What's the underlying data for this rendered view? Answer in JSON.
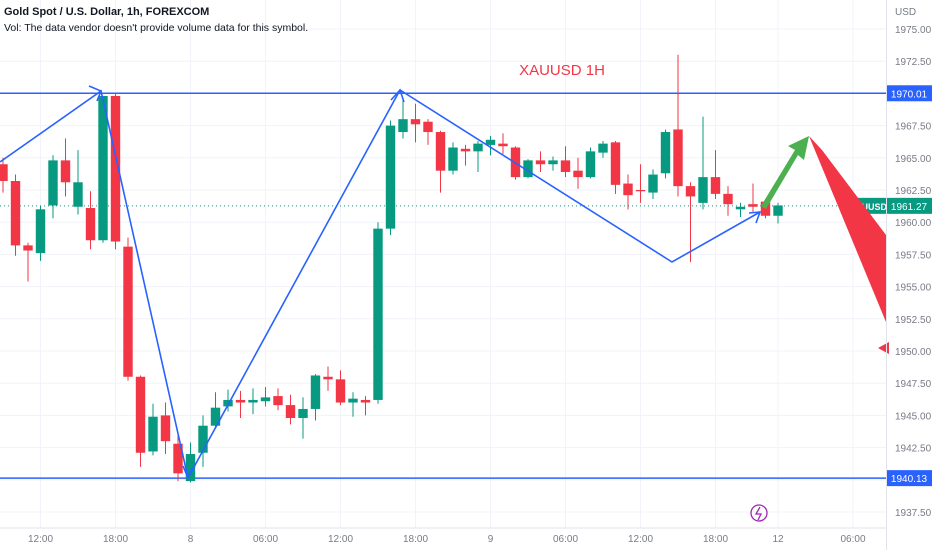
{
  "header": {
    "title": "Gold Spot / U.S. Dollar, 1h, FOREXCOM",
    "volume_note": "Vol: The data vendor doesn't provide volume data for this symbol."
  },
  "chart_data": {
    "type": "candlestick",
    "title": "XAUUSD 1H",
    "currency_label": "USD",
    "ylim": [
      1936.8,
      1976.6
    ],
    "y_ticks": [
      "1975.00",
      "1972.50",
      "1970.00",
      "1967.50",
      "1965.00",
      "1962.50",
      "1960.00",
      "1957.50",
      "1955.00",
      "1952.50",
      "1950.00",
      "1947.50",
      "1945.00",
      "1942.50",
      "1940.00",
      "1937.50"
    ],
    "x_ticks": [
      {
        "label": "12:00",
        "bar": 3
      },
      {
        "label": "18:00",
        "bar": 9
      },
      {
        "label": "8",
        "bar": 15
      },
      {
        "label": "06:00",
        "bar": 21
      },
      {
        "label": "12:00",
        "bar": 27
      },
      {
        "label": "18:00",
        "bar": 33
      },
      {
        "label": "9",
        "bar": 39
      },
      {
        "label": "06:00",
        "bar": 45
      },
      {
        "label": "12:00",
        "bar": 51
      },
      {
        "label": "18:00",
        "bar": 57
      },
      {
        "label": "12",
        "bar": 62
      },
      {
        "label": "06:00",
        "bar": 68
      }
    ],
    "candles": [
      [
        1964.5,
        1965.0,
        1962.3,
        1963.2
      ],
      [
        1963.2,
        1963.7,
        1957.4,
        1958.2
      ],
      [
        1958.2,
        1958.4,
        1955.4,
        1957.8
      ],
      [
        1957.6,
        1961.3,
        1957.0,
        1961.0
      ],
      [
        1961.3,
        1965.2,
        1960.3,
        1964.8
      ],
      [
        1964.8,
        1966.5,
        1962.0,
        1963.1
      ],
      [
        1961.2,
        1965.6,
        1960.6,
        1963.1
      ],
      [
        1961.1,
        1962.4,
        1957.9,
        1958.6
      ],
      [
        1958.6,
        1969.8,
        1958.4,
        1969.8
      ],
      [
        1969.8,
        1970.0,
        1957.9,
        1958.5
      ],
      [
        1958.1,
        1958.8,
        1947.7,
        1948.0
      ],
      [
        1948.0,
        1948.1,
        1941.0,
        1942.1
      ],
      [
        1942.2,
        1945.9,
        1941.9,
        1944.9
      ],
      [
        1945.0,
        1946.0,
        1942.0,
        1943.0
      ],
      [
        1942.8,
        1943.5,
        1939.9,
        1940.5
      ],
      [
        1939.9,
        1942.9,
        1939.8,
        1942.0
      ],
      [
        1942.1,
        1945.0,
        1941.0,
        1944.2
      ],
      [
        1944.2,
        1946.8,
        1944.0,
        1945.6
      ],
      [
        1945.7,
        1947.0,
        1945.3,
        1946.2
      ],
      [
        1946.2,
        1946.9,
        1944.8,
        1946.0
      ],
      [
        1946.0,
        1947.1,
        1945.1,
        1946.2
      ],
      [
        1946.1,
        1947.2,
        1945.7,
        1946.4
      ],
      [
        1946.5,
        1947.1,
        1945.4,
        1945.8
      ],
      [
        1945.8,
        1946.6,
        1944.3,
        1944.8
      ],
      [
        1944.8,
        1946.4,
        1943.2,
        1945.5
      ],
      [
        1945.5,
        1948.2,
        1944.6,
        1948.1
      ],
      [
        1948.0,
        1948.8,
        1946.9,
        1947.8
      ],
      [
        1947.8,
        1948.5,
        1945.8,
        1946.0
      ],
      [
        1946.0,
        1946.8,
        1944.9,
        1946.3
      ],
      [
        1946.2,
        1946.5,
        1945.0,
        1946.0
      ],
      [
        1946.2,
        1960.0,
        1945.9,
        1959.5
      ],
      [
        1959.5,
        1967.9,
        1959.0,
        1967.5
      ],
      [
        1967.0,
        1969.5,
        1966.5,
        1968.0
      ],
      [
        1968.0,
        1969.2,
        1966.2,
        1967.6
      ],
      [
        1967.8,
        1968.0,
        1966.0,
        1967.0
      ],
      [
        1967.0,
        1967.1,
        1962.3,
        1964.0
      ],
      [
        1964.0,
        1966.2,
        1963.7,
        1965.8
      ],
      [
        1965.7,
        1966.0,
        1964.4,
        1965.5
      ],
      [
        1965.5,
        1966.3,
        1963.9,
        1966.1
      ],
      [
        1966.0,
        1966.7,
        1965.2,
        1966.4
      ],
      [
        1966.1,
        1966.9,
        1965.3,
        1965.9
      ],
      [
        1965.8,
        1965.9,
        1963.3,
        1963.5
      ],
      [
        1963.5,
        1964.9,
        1963.4,
        1964.8
      ],
      [
        1964.8,
        1965.5,
        1963.9,
        1964.5
      ],
      [
        1964.5,
        1965.1,
        1964.0,
        1964.8
      ],
      [
        1964.8,
        1965.9,
        1963.5,
        1963.9
      ],
      [
        1964.0,
        1965.0,
        1962.6,
        1963.5
      ],
      [
        1963.5,
        1965.8,
        1963.4,
        1965.5
      ],
      [
        1965.4,
        1966.3,
        1965.0,
        1966.1
      ],
      [
        1966.2,
        1966.3,
        1962.2,
        1962.9
      ],
      [
        1963.0,
        1963.7,
        1961.0,
        1962.1
      ],
      [
        1962.5,
        1964.5,
        1961.5,
        1962.4
      ],
      [
        1962.3,
        1964.1,
        1961.8,
        1963.7
      ],
      [
        1963.8,
        1967.2,
        1963.4,
        1967.0
      ],
      [
        1967.2,
        1973.0,
        1962.0,
        1962.8
      ],
      [
        1962.8,
        1963.1,
        1956.9,
        1962.0
      ],
      [
        1961.5,
        1968.2,
        1961.0,
        1963.5
      ],
      [
        1963.5,
        1965.6,
        1961.8,
        1962.2
      ],
      [
        1962.2,
        1962.8,
        1960.5,
        1961.4
      ],
      [
        1961.0,
        1961.5,
        1960.4,
        1961.2
      ],
      [
        1961.4,
        1963.0,
        1960.8,
        1961.2
      ],
      [
        1961.6,
        1961.8,
        1960.3,
        1960.5
      ],
      [
        1960.5,
        1961.5,
        1959.9,
        1961.3
      ]
    ],
    "levels": [
      {
        "label": "1970.01",
        "value": 1970.01
      },
      {
        "label": "1940.13",
        "value": 1940.13
      }
    ],
    "last_price": {
      "symbol": "XAUUSD",
      "label": "1961.27",
      "value": 1961.27
    },
    "colors": {
      "up": "#089981",
      "down": "#f23645",
      "lines": "#2962ff",
      "arrow_up": "#4caf50",
      "arrow_down": "#f23645",
      "title": "#f23645"
    }
  }
}
